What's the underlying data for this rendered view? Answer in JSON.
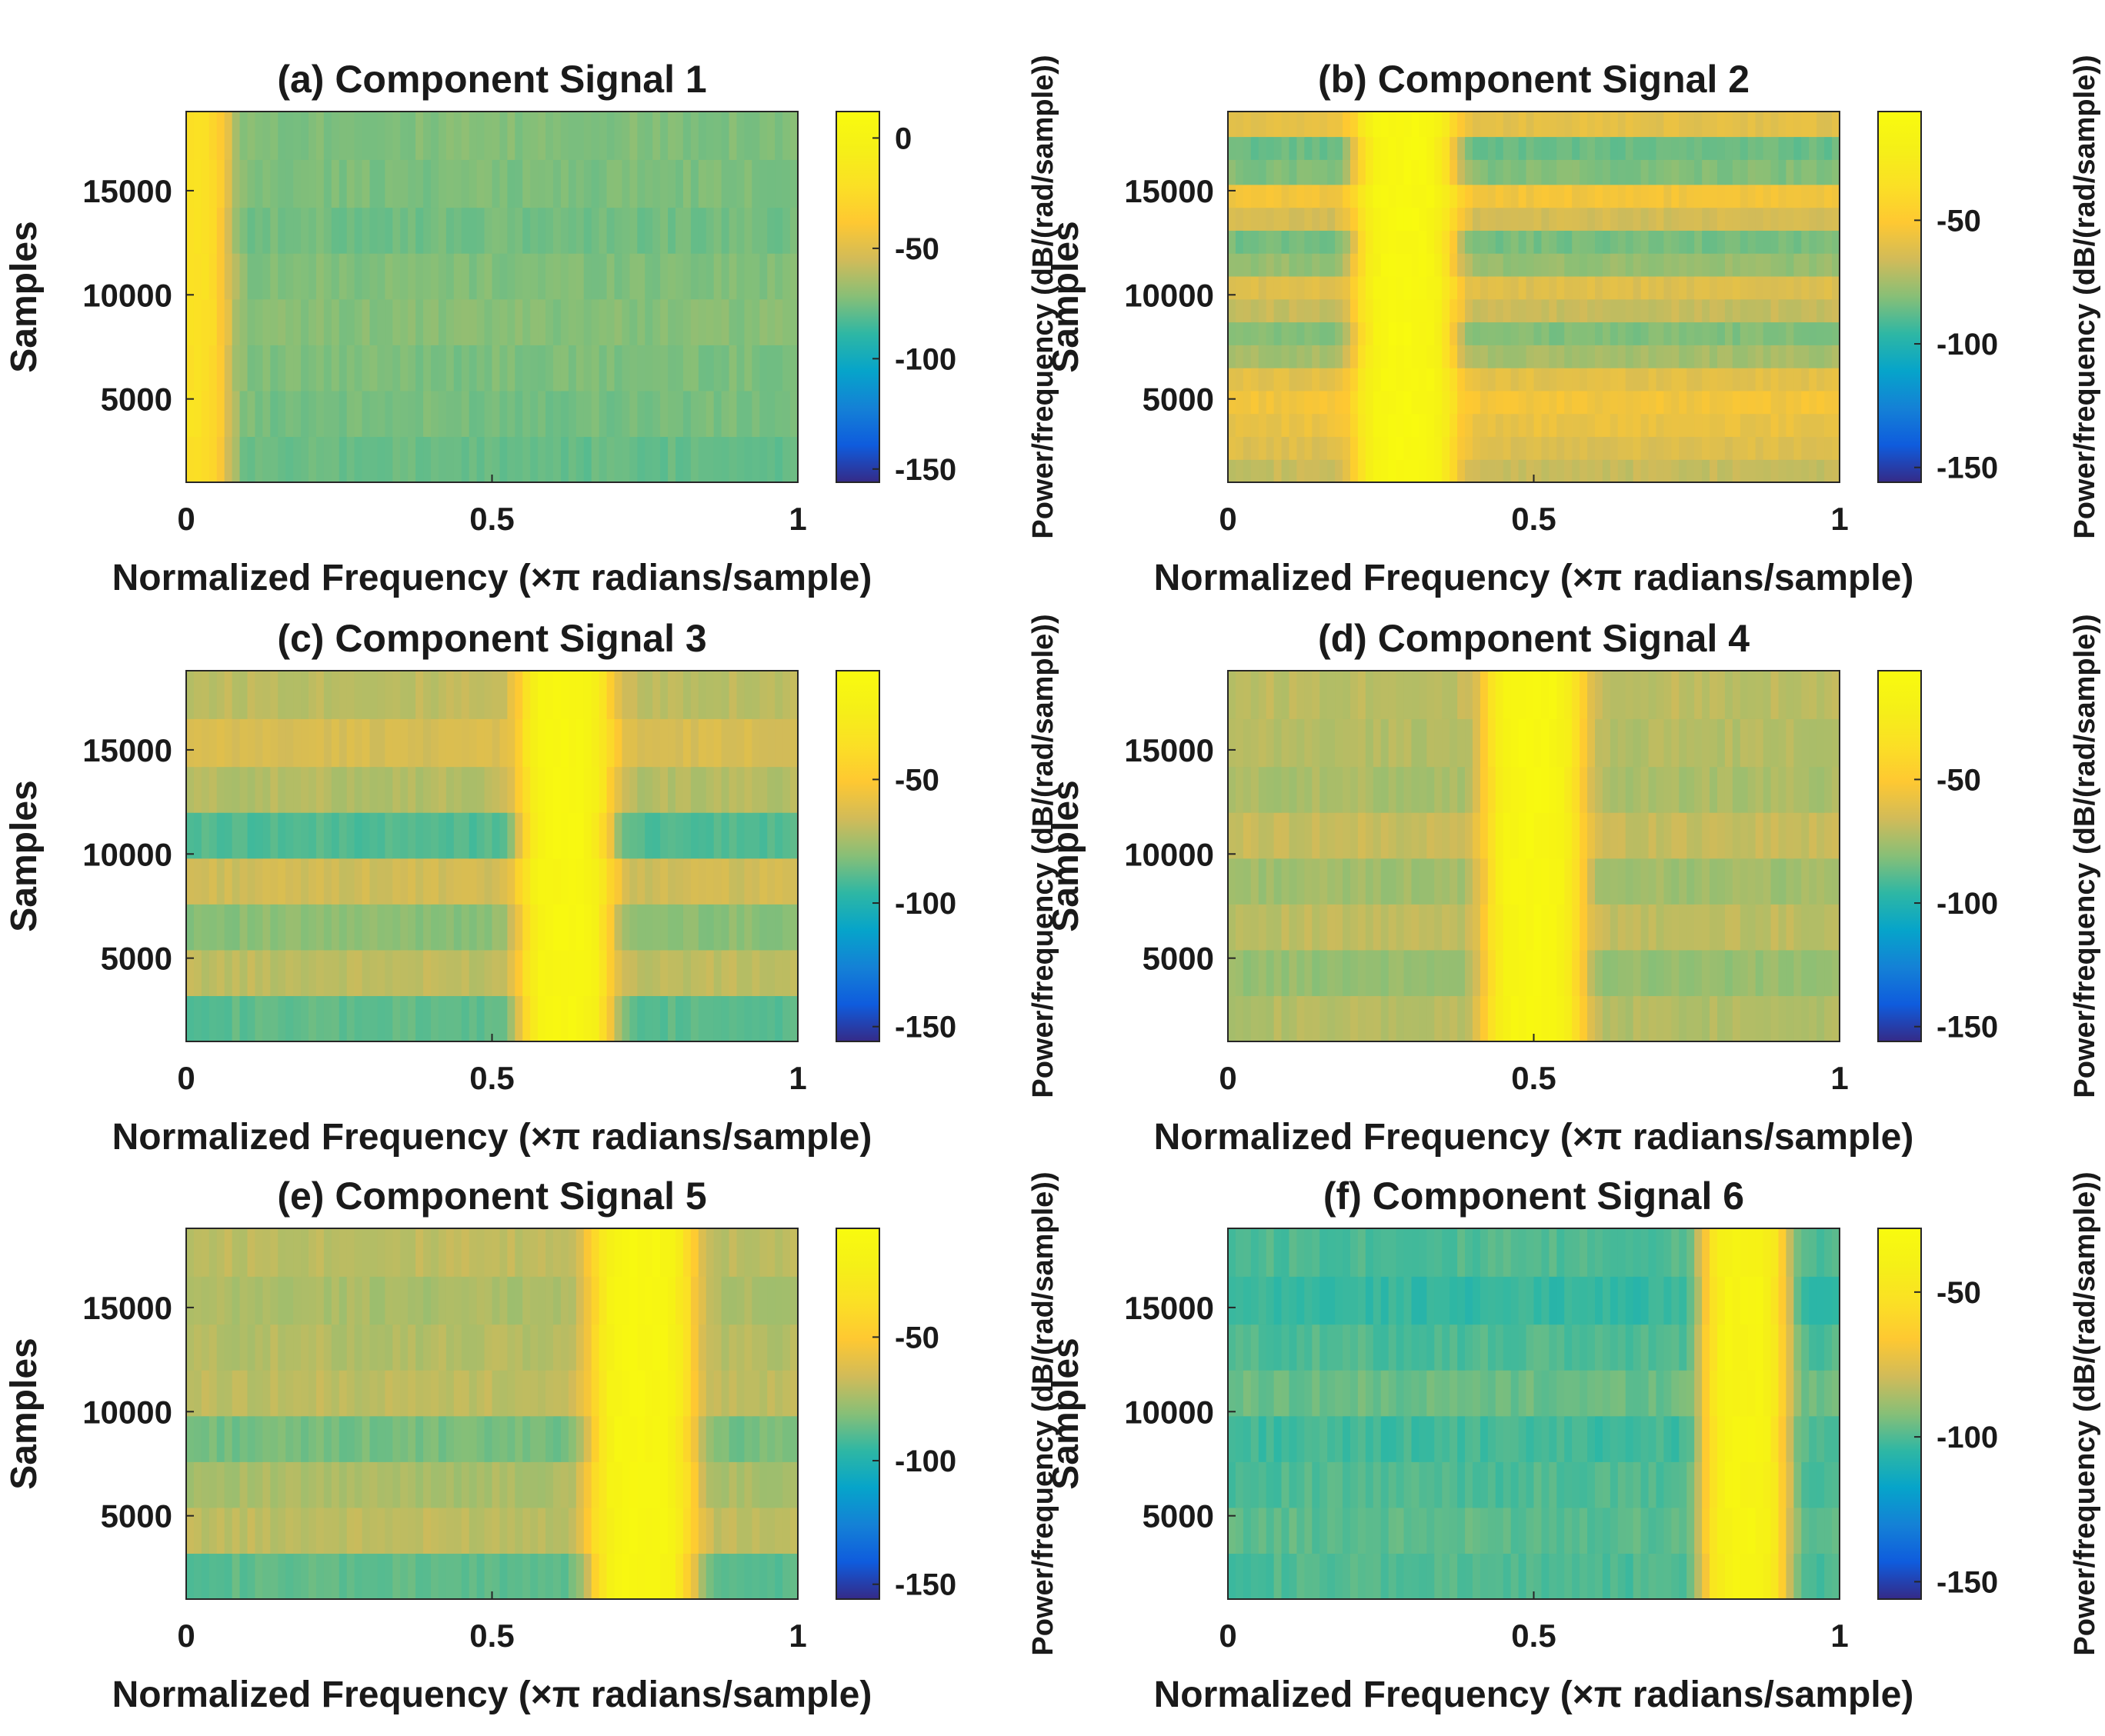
{
  "chart_data": [
    {
      "type": "heatmap",
      "title": "(a) Component Signal 1",
      "xlabel": "Normalized Frequency (×π radians/sample)",
      "ylabel": "Samples",
      "xlim": [
        0,
        1
      ],
      "ylim": [
        1000,
        18800
      ],
      "xticks": [
        0,
        0.5,
        1
      ],
      "xtick_labels": [
        "0",
        "0.5",
        "1"
      ],
      "yticks": [
        5000,
        10000,
        15000
      ],
      "ytick_labels": [
        "5000",
        "10000",
        "15000"
      ],
      "colorbar": {
        "label": "Power/frequency (dB/(rad/sample))",
        "range": [
          -156,
          12
        ],
        "ticks": [
          0,
          -50,
          -100,
          -150
        ],
        "tick_labels": [
          "0",
          "-50",
          "-100",
          "-150"
        ]
      },
      "band_center": 0.0,
      "band_halfwidth": 0.075,
      "band_db": -20,
      "background_db": [
        -78,
        -75,
        -74,
        -72,
        -73,
        -76,
        -74,
        -73,
        -74,
        -72,
        -75,
        -73,
        -74,
        -76,
        -75,
        -77
      ],
      "row_boundaries": [
        1000,
        3200,
        5400,
        7600,
        9800,
        12000,
        14200,
        16500,
        18800
      ]
    },
    {
      "type": "heatmap",
      "title": "(b) Component Signal 2",
      "xlabel": "Normalized Frequency (×π radians/sample)",
      "ylabel": "Samples",
      "xlim": [
        0,
        1
      ],
      "ylim": [
        1000,
        18800
      ],
      "xticks": [
        0,
        0.5,
        1
      ],
      "xtick_labels": [
        "0",
        "0.5",
        "1"
      ],
      "yticks": [
        5000,
        10000,
        15000
      ],
      "ytick_labels": [
        "5000",
        "10000",
        "15000"
      ],
      "colorbar": {
        "label": "Power/frequency (dB/(rad/sample))",
        "range": [
          -156,
          -6
        ],
        "ticks": [
          -50,
          -100,
          -150
        ],
        "tick_labels": [
          "-50",
          "-100",
          "-150"
        ]
      },
      "band_center": 0.29,
      "band_halfwidth": 0.085,
      "band_db": -10,
      "background_db": [
        -68,
        -62,
        -58,
        -55,
        -60,
        -75,
        -82,
        -68,
        -62,
        -78,
        -84,
        -65,
        -55,
        -82,
        -86,
        -60,
        -52
      ],
      "row_boundaries": [
        1000,
        2100,
        3200,
        4300,
        5400,
        6500,
        7600,
        8700,
        9800,
        10900,
        12000,
        13100,
        14200,
        15300,
        16500,
        17600,
        18800
      ]
    },
    {
      "type": "heatmap",
      "title": "(c) Component Signal 3",
      "xlabel": "Normalized Frequency (×π radians/sample)",
      "ylabel": "Samples",
      "xlim": [
        0,
        1
      ],
      "ylim": [
        1000,
        18800
      ],
      "xticks": [
        0,
        0.5,
        1
      ],
      "xtick_labels": [
        "0",
        "0.5",
        "1"
      ],
      "yticks": [
        5000,
        10000,
        15000
      ],
      "ytick_labels": [
        "5000",
        "10000",
        "15000"
      ],
      "colorbar": {
        "label": "Power/frequency (dB/(rad/sample))",
        "range": [
          -156,
          -6
        ],
        "ticks": [
          -50,
          -100,
          -150
        ],
        "tick_labels": [
          "-50",
          "-100",
          "-150"
        ]
      },
      "band_center": 0.62,
      "band_halfwidth": 0.08,
      "band_db": -12,
      "background_db": [
        -88,
        -70,
        -80,
        -66,
        -90,
        -72,
        -64,
        -70,
        -82,
        -68,
        -86,
        -72,
        -68,
        -78,
        -74,
        -80
      ],
      "row_boundaries": [
        1000,
        3200,
        5400,
        7600,
        9800,
        12000,
        14200,
        16500,
        18800
      ]
    },
    {
      "type": "heatmap",
      "title": "(d) Component Signal 4",
      "xlabel": "Normalized Frequency (×π radians/sample)",
      "ylabel": "Samples",
      "xlim": [
        0,
        1
      ],
      "ylim": [
        1000,
        18800
      ],
      "xticks": [
        0,
        0.5,
        1
      ],
      "xtick_labels": [
        "0",
        "0.5",
        "1"
      ],
      "yticks": [
        5000,
        10000,
        15000
      ],
      "ytick_labels": [
        "5000",
        "10000",
        "15000"
      ],
      "colorbar": {
        "label": "Power/frequency (dB/(rad/sample))",
        "range": [
          -156,
          -6
        ],
        "ticks": [
          -50,
          -100,
          -150
        ],
        "tick_labels": [
          "-50",
          "-100",
          "-150"
        ]
      },
      "band_center": 0.5,
      "band_halfwidth": 0.085,
      "band_db": -12,
      "background_db": [
        -72,
        -78,
        -70,
        -76,
        -68,
        -74,
        -72,
        -70,
        -78,
        -74,
        -72,
        -70,
        -80,
        -82,
        -76,
        -74
      ],
      "row_boundaries": [
        1000,
        3200,
        5400,
        7600,
        9800,
        12000,
        14200,
        16500,
        18800
      ]
    },
    {
      "type": "heatmap",
      "title": "(e) Component Signal 5",
      "xlabel": "Normalized Frequency (×π radians/sample)",
      "ylabel": "Samples",
      "xlim": [
        0,
        1
      ],
      "ylim": [
        1000,
        18800
      ],
      "xticks": [
        0,
        0.5,
        1
      ],
      "xtick_labels": [
        "0",
        "0.5",
        "1"
      ],
      "yticks": [
        5000,
        10000,
        15000
      ],
      "ytick_labels": [
        "5000",
        "10000",
        "15000"
      ],
      "colorbar": {
        "label": "Power/frequency (dB/(rad/sample))",
        "range": [
          -156,
          -6
        ],
        "ticks": [
          -50,
          -100,
          -150
        ],
        "tick_labels": [
          "-50",
          "-100",
          "-150"
        ]
      },
      "band_center": 0.745,
      "band_halfwidth": 0.09,
      "band_db": -12,
      "background_db": [
        -88,
        -70,
        -74,
        -84,
        -70,
        -72,
        -74,
        -70,
        -72,
        -66,
        -70,
        -72,
        -68,
        -64,
        -70,
        -68
      ],
      "row_boundaries": [
        1000,
        3200,
        5400,
        7600,
        9800,
        12000,
        14200,
        16500,
        18800
      ]
    },
    {
      "type": "heatmap",
      "title": "(f) Component Signal 6",
      "xlabel": "Normalized Frequency (×π radians/sample)",
      "ylabel": "Samples",
      "xlim": [
        0,
        1
      ],
      "ylim": [
        1000,
        18800
      ],
      "xticks": [
        0,
        0.5,
        1
      ],
      "xtick_labels": [
        "0",
        "0.5",
        "1"
      ],
      "yticks": [
        5000,
        10000,
        15000
      ],
      "ytick_labels": [
        "5000",
        "10000",
        "15000"
      ],
      "colorbar": {
        "label": "Power/frequency (dB/(rad/sample))",
        "range": [
          -156,
          -28
        ],
        "ticks": [
          -50,
          -100,
          -150
        ],
        "tick_labels": [
          "-50",
          "-100",
          "-150"
        ]
      },
      "band_center": 0.845,
      "band_halfwidth": 0.075,
      "band_db": -36,
      "background_db": [
        -100,
        -98,
        -100,
        -102,
        -96,
        -100,
        -104,
        -100,
        -98,
        -102,
        -114,
        -116,
        -104,
        -96,
        -100,
        -96
      ],
      "row_boundaries": [
        1000,
        3200,
        5400,
        7600,
        9800,
        12000,
        14200,
        16500,
        18800
      ]
    }
  ]
}
